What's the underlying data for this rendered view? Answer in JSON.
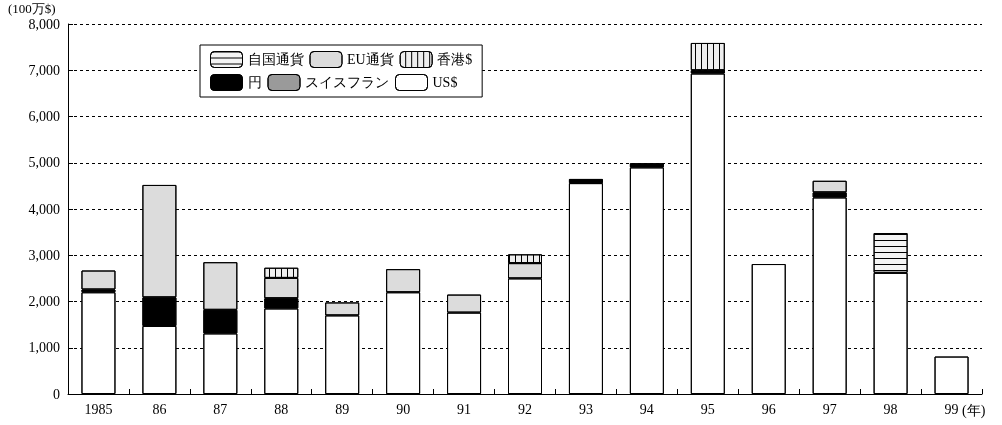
{
  "chart_data": {
    "type": "bar",
    "stacked": true,
    "ylabel": "(100万$)",
    "xlabel": "(年)",
    "categories": [
      "1985",
      "86",
      "87",
      "88",
      "89",
      "90",
      "91",
      "92",
      "93",
      "94",
      "95",
      "96",
      "97",
      "98",
      "99"
    ],
    "series": [
      {
        "name": "US$",
        "color": "#ffffff",
        "values": [
          2200,
          1470,
          1310,
          1850,
          1700,
          2200,
          1760,
          2500,
          4560,
          4900,
          6930,
          2810,
          4250,
          2620,
          810
        ]
      },
      {
        "name": "円",
        "color": "#000000",
        "values": [
          60,
          620,
          510,
          220,
          null,
          null,
          null,
          null,
          90,
          90,
          70,
          null,
          110,
          null,
          null
        ]
      },
      {
        "name": "スイスフラン",
        "color": "#9a9a9a",
        "values": [
          null,
          null,
          null,
          null,
          null,
          null,
          null,
          null,
          null,
          null,
          null,
          null,
          null,
          null,
          null
        ]
      },
      {
        "name": "EU通貨",
        "color": "#dcdcdc",
        "values": [
          410,
          2430,
          1030,
          440,
          280,
          500,
          390,
          330,
          null,
          null,
          null,
          null,
          250,
          null,
          null
        ]
      },
      {
        "name": "香港$",
        "color": "#eeeeee",
        "values": [
          null,
          null,
          null,
          220,
          null,
          null,
          null,
          190,
          null,
          null,
          590,
          null,
          null,
          null,
          null
        ]
      },
      {
        "name": "自国通貨",
        "color": "#f4f4f4",
        "values": [
          null,
          null,
          null,
          null,
          null,
          null,
          null,
          null,
          null,
          null,
          null,
          null,
          null,
          860,
          null
        ]
      }
    ],
    "ylim": [
      0,
      8000
    ],
    "yticks": [
      0,
      {
        "value": 1000,
        "label": "1,000"
      },
      {
        "value": 2000,
        "label": "2,000"
      },
      {
        "value": 3000,
        "label": "3,000"
      },
      {
        "value": 4000,
        "label": "4,000"
      },
      {
        "value": 5000,
        "label": "5,000"
      },
      {
        "value": 6000,
        "label": "6,000"
      },
      {
        "value": 7000,
        "label": "7,000"
      },
      {
        "value": 8000,
        "label": "8,000"
      }
    ],
    "grid": "y",
    "legend": "top left"
  }
}
